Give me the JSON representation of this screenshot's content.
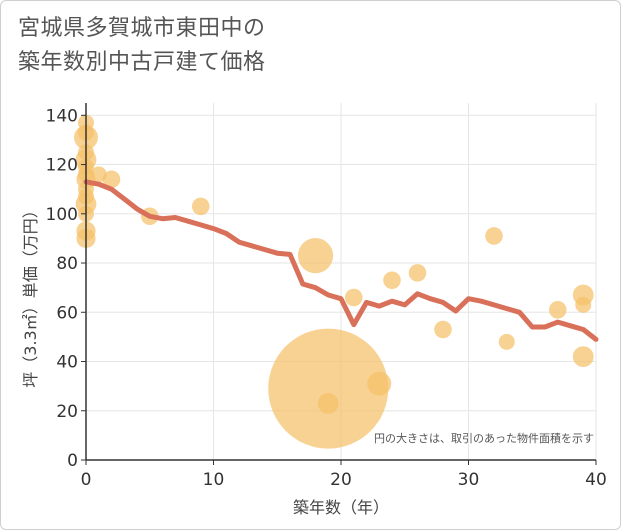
{
  "chart_data": {
    "type": "scatter",
    "title_lines": [
      "宮城県多賀城市東田中の",
      "築年数別中古戸建て価格"
    ],
    "xlabel": "築年数（年）",
    "ylabel": "坪（3.3㎡）単価（万円）",
    "xlim": [
      0,
      40
    ],
    "ylim": [
      0,
      145
    ],
    "x_ticks": [
      0,
      10,
      20,
      30,
      40
    ],
    "y_ticks": [
      0,
      20,
      40,
      60,
      80,
      100,
      120,
      140
    ],
    "grid": true,
    "note": "円の大きさは、取引のあった物件面積を示す",
    "colors": {
      "bubble": "#f5c169",
      "line": "#d9705a",
      "axis": "#333333"
    },
    "points": [
      {
        "x": 0,
        "y": 137,
        "size": 1
      },
      {
        "x": 0,
        "y": 133,
        "size": 1
      },
      {
        "x": 0,
        "y": 131,
        "size": 1.5
      },
      {
        "x": 0,
        "y": 125,
        "size": 1
      },
      {
        "x": 0,
        "y": 122,
        "size": 1.3
      },
      {
        "x": 0,
        "y": 119,
        "size": 1
      },
      {
        "x": 0,
        "y": 116,
        "size": 1
      },
      {
        "x": 0,
        "y": 114,
        "size": 1.2
      },
      {
        "x": 0,
        "y": 110,
        "size": 1
      },
      {
        "x": 0,
        "y": 107,
        "size": 1
      },
      {
        "x": 0,
        "y": 104,
        "size": 1.3
      },
      {
        "x": 0,
        "y": 100,
        "size": 1
      },
      {
        "x": 0,
        "y": 93,
        "size": 1.2
      },
      {
        "x": 0,
        "y": 90,
        "size": 1.2
      },
      {
        "x": 1,
        "y": 116,
        "size": 1
      },
      {
        "x": 2,
        "y": 114,
        "size": 1.1
      },
      {
        "x": 5,
        "y": 99,
        "size": 1.1
      },
      {
        "x": 9,
        "y": 103,
        "size": 1.1
      },
      {
        "x": 18,
        "y": 83,
        "size": 2.2
      },
      {
        "x": 19,
        "y": 29,
        "size": 7.5
      },
      {
        "x": 19,
        "y": 23,
        "size": 1.3
      },
      {
        "x": 21,
        "y": 66,
        "size": 1.1
      },
      {
        "x": 23,
        "y": 31,
        "size": 1.5
      },
      {
        "x": 24,
        "y": 73,
        "size": 1.1
      },
      {
        "x": 26,
        "y": 76,
        "size": 1.1
      },
      {
        "x": 28,
        "y": 53,
        "size": 1.1
      },
      {
        "x": 32,
        "y": 91,
        "size": 1.1
      },
      {
        "x": 33,
        "y": 48,
        "size": 1
      },
      {
        "x": 37,
        "y": 61,
        "size": 1.1
      },
      {
        "x": 39,
        "y": 67,
        "size": 1.3
      },
      {
        "x": 39,
        "y": 63,
        "size": 1
      },
      {
        "x": 39,
        "y": 42,
        "size": 1.3
      }
    ],
    "trend": {
      "x": [
        0,
        1,
        2,
        3,
        4,
        5,
        6,
        7,
        8,
        9,
        10,
        11,
        12,
        13,
        14,
        15,
        16,
        17,
        18,
        19,
        20,
        21,
        22,
        23,
        24,
        25,
        26,
        27,
        28,
        29,
        30,
        31,
        32,
        33,
        34,
        35,
        36,
        37,
        38,
        39,
        40
      ],
      "y": [
        113,
        112,
        110,
        106,
        102,
        99,
        98,
        98.5,
        97,
        95.5,
        94,
        92,
        88.5,
        87,
        85.5,
        84,
        83.5,
        71.5,
        70,
        67,
        65.5,
        55,
        64,
        62.5,
        64.5,
        63,
        67.5,
        65.5,
        64,
        60.5,
        65.5,
        64.5,
        63,
        61.5,
        60,
        54,
        54,
        56,
        54.5,
        53,
        49
      ]
    }
  }
}
